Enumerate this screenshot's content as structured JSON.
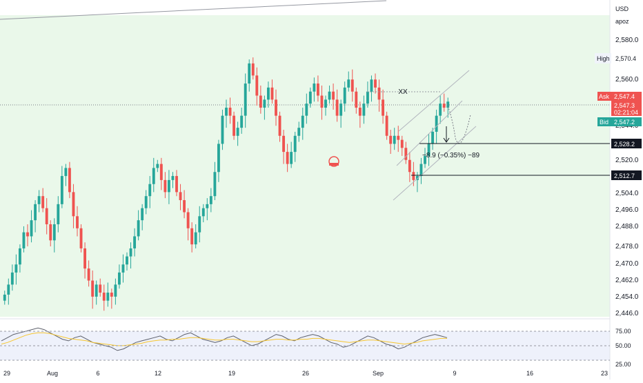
{
  "toolbar": {
    "currency": "USD",
    "account": "apoz"
  },
  "colors": {
    "up": "#26a69a",
    "down": "#ef5350",
    "zone": "#eaf8ea",
    "rsi_line": "#5d606b",
    "rsi_ma": "#f7c62d",
    "label_dark": "#131722"
  },
  "chart_data": [
    {
      "type": "candlestick",
      "title": "",
      "xlabel": "",
      "ylabel": "",
      "ylim": [
        2440,
        2590
      ],
      "y_ticks": [
        2580.0,
        2560.0,
        2544.0,
        2528.0,
        2520.0,
        2512.0,
        2504.0,
        2496.0,
        2488.0,
        2478.0,
        2470.0,
        2462.0,
        2454.0,
        2446.0
      ],
      "x_ticks": [
        "29",
        "Aug",
        "6",
        "12",
        "19",
        "26",
        "Sep",
        "9",
        "16",
        "23"
      ],
      "grid": false,
      "series": [
        {
          "name": "",
          "values": [
            2451,
            2456,
            2462,
            2466,
            2474,
            2482,
            2480,
            2488,
            2496,
            2500,
            2494,
            2486,
            2478,
            2486,
            2496,
            2510,
            2514,
            2502,
            2490,
            2484,
            2474,
            2464,
            2458,
            2450,
            2456,
            2452,
            2448,
            2452,
            2450,
            2456,
            2462,
            2466,
            2470,
            2474,
            2480,
            2488,
            2494,
            2500,
            2506,
            2514,
            2516,
            2508,
            2502,
            2508,
            2510,
            2502,
            2498,
            2492,
            2484,
            2476,
            2482,
            2490,
            2494,
            2496,
            2500,
            2512,
            2526,
            2540,
            2544,
            2540,
            2530,
            2534,
            2540,
            2556,
            2566,
            2560,
            2550,
            2544,
            2548,
            2554,
            2548,
            2540,
            2530,
            2522,
            2516,
            2522,
            2530,
            2534,
            2540,
            2546,
            2552,
            2556,
            2550,
            2544,
            2548,
            2552,
            2548,
            2540,
            2546,
            2554,
            2558,
            2552,
            2544,
            2540,
            2546,
            2552,
            2558,
            2554,
            2548,
            2540,
            2530,
            2526,
            2530,
            2528,
            2524,
            2518,
            2512,
            2508,
            2510,
            2516,
            2520,
            2526,
            2532,
            2540,
            2546,
            2544,
            2547
          ]
        }
      ],
      "price_labels": {
        "high_label": "High",
        "high": "2,570.4",
        "ask_label": "Ask",
        "ask": "2,547.4",
        "last": "2,547.3",
        "countdown": "02:21:04",
        "bid_label": "Bid",
        "bid": "2,547.2",
        "level_1": "2,528.2",
        "level_2": "2,512.7"
      },
      "annotations": {
        "marker": "XX",
        "measure": "−8.9 (−0.35%) −89"
      }
    },
    {
      "type": "line",
      "title": "",
      "ylim": [
        25,
        80
      ],
      "y_ticks": [
        "75.00",
        "50.00",
        "25.00"
      ],
      "series": [
        {
          "name": "",
          "values": [
            56,
            60,
            64,
            66,
            68,
            70,
            72,
            70,
            66,
            62,
            58,
            56,
            60,
            62,
            58,
            54,
            52,
            50,
            48,
            44,
            46,
            50,
            54,
            56,
            58,
            60,
            62,
            58,
            56,
            60,
            64,
            66,
            62,
            58,
            56,
            54,
            56,
            60,
            62,
            58,
            54,
            50,
            52,
            56,
            60,
            64,
            62,
            58,
            56,
            60,
            62,
            64,
            62,
            58,
            54,
            52,
            48,
            50,
            54,
            58,
            62,
            60,
            56,
            52,
            50,
            46,
            48,
            52,
            56,
            60,
            62,
            64,
            62,
            60
          ]
        },
        {
          "name": "",
          "values": [
            52,
            54,
            57,
            60,
            63,
            65,
            66,
            66,
            65,
            63,
            61,
            59,
            58,
            57,
            56,
            54,
            53,
            52,
            51,
            50,
            50,
            51,
            52,
            53,
            55,
            56,
            57,
            57,
            58,
            58,
            59,
            60,
            60,
            59,
            58,
            57,
            57,
            58,
            58,
            57,
            56,
            55,
            55,
            56,
            57,
            58,
            58,
            57,
            57,
            58,
            58,
            59,
            59,
            58,
            57,
            56,
            55,
            54,
            55,
            56,
            57,
            57,
            56,
            55,
            54,
            53,
            52,
            53,
            54,
            56,
            57,
            58,
            59,
            59
          ]
        }
      ]
    }
  ]
}
